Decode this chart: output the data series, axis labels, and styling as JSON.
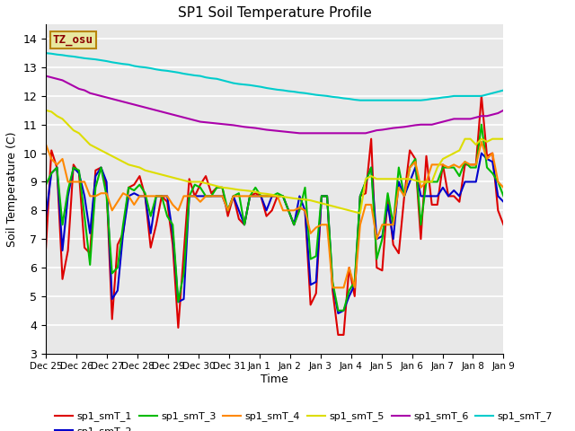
{
  "title": "SP1 Soil Temperature Profile",
  "xlabel": "Time",
  "ylabel": "Soil Temperature (C)",
  "ylim": [
    3.0,
    14.5
  ],
  "background_color": "#e8e8e8",
  "annotation_text": "TZ_osu",
  "annotation_bg": "#e8e8a0",
  "annotation_border": "#b8860b",
  "annotation_text_color": "#8b0000",
  "xtick_labels": [
    "Dec 25",
    "Dec 26",
    "Dec 27",
    "Dec 28",
    "Dec 29",
    "Dec 30",
    "Dec 31",
    "Jan 1",
    "Jan 2",
    "Jan 3",
    "Jan 4",
    "Jan 5",
    "Jan 6",
    "Jan 7",
    "Jan 8",
    "Jan 9"
  ],
  "series_colors": {
    "sp1_smT_1": "#dd0000",
    "sp1_smT_2": "#0000cc",
    "sp1_smT_3": "#00bb00",
    "sp1_smT_4": "#ff8800",
    "sp1_smT_5": "#dddd00",
    "sp1_smT_6": "#aa00aa",
    "sp1_smT_7": "#00cccc"
  },
  "sp1_smT_1": [
    6.7,
    10.1,
    9.5,
    5.6,
    6.6,
    9.6,
    9.3,
    6.7,
    6.5,
    9.4,
    9.5,
    8.8,
    4.2,
    6.8,
    7.2,
    8.8,
    8.9,
    9.2,
    8.5,
    6.7,
    7.5,
    8.5,
    8.3,
    6.8,
    3.9,
    6.5,
    9.1,
    8.5,
    8.9,
    9.2,
    8.6,
    8.8,
    8.8,
    7.8,
    8.5,
    7.7,
    7.5,
    8.5,
    8.6,
    8.5,
    7.8,
    8.0,
    8.5,
    8.5,
    8.0,
    7.5,
    8.1,
    8.0,
    4.7,
    5.1,
    8.5,
    8.5,
    5.2,
    3.65,
    3.65,
    6.0,
    5.0,
    8.5,
    8.6,
    10.5,
    6.0,
    5.9,
    8.5,
    6.8,
    6.5,
    8.5,
    10.1,
    9.8,
    7.0,
    9.9,
    8.2,
    8.2,
    9.6,
    8.5,
    8.5,
    8.3,
    9.6,
    9.6,
    9.6,
    12.0,
    9.9,
    10.0,
    8.0,
    7.5
  ],
  "sp1_smT_2": [
    7.8,
    9.3,
    9.5,
    6.6,
    8.5,
    9.5,
    9.3,
    8.5,
    7.2,
    9.2,
    9.5,
    9.0,
    4.9,
    5.2,
    7.2,
    8.5,
    8.6,
    8.5,
    8.5,
    7.2,
    8.5,
    8.5,
    8.5,
    7.2,
    4.8,
    4.9,
    8.5,
    8.5,
    8.5,
    8.5,
    8.5,
    8.5,
    8.5,
    8.0,
    8.5,
    8.0,
    7.5,
    8.5,
    8.5,
    8.5,
    8.0,
    8.5,
    8.5,
    8.5,
    8.0,
    7.5,
    8.5,
    8.0,
    5.4,
    5.5,
    8.5,
    8.5,
    5.4,
    4.4,
    4.5,
    5.0,
    5.4,
    8.5,
    9.0,
    9.5,
    7.0,
    7.1,
    8.2,
    7.0,
    9.0,
    8.5,
    9.0,
    9.5,
    8.5,
    8.5,
    8.5,
    8.5,
    8.8,
    8.5,
    8.7,
    8.5,
    9.0,
    9.0,
    9.0,
    10.0,
    9.8,
    9.7,
    8.5,
    8.3
  ],
  "sp1_smT_3": [
    8.9,
    9.3,
    9.5,
    7.5,
    8.7,
    9.5,
    9.4,
    7.8,
    6.1,
    8.8,
    9.5,
    8.5,
    5.8,
    6.0,
    7.5,
    8.8,
    8.7,
    8.9,
    8.6,
    7.8,
    8.5,
    8.5,
    7.8,
    7.5,
    4.8,
    5.8,
    8.5,
    8.9,
    8.8,
    8.5,
    8.5,
    8.8,
    8.8,
    8.0,
    8.5,
    8.6,
    7.5,
    8.5,
    8.8,
    8.5,
    8.5,
    8.5,
    8.6,
    8.5,
    8.0,
    7.5,
    8.0,
    8.8,
    6.3,
    6.4,
    8.5,
    8.5,
    5.5,
    4.5,
    4.5,
    5.2,
    5.5,
    8.5,
    9.0,
    9.5,
    6.3,
    7.0,
    8.6,
    7.5,
    9.5,
    8.5,
    9.5,
    9.8,
    7.5,
    9.0,
    9.0,
    9.0,
    9.5,
    9.5,
    9.5,
    9.2,
    9.7,
    9.5,
    9.5,
    11.0,
    9.5,
    9.3,
    9.0,
    8.5
  ],
  "sp1_smT_4": [
    10.3,
    9.8,
    9.6,
    9.8,
    9.0,
    9.0,
    9.0,
    9.0,
    8.5,
    8.5,
    8.6,
    8.6,
    8.0,
    8.3,
    8.6,
    8.5,
    8.2,
    8.5,
    8.5,
    8.5,
    8.5,
    8.5,
    8.5,
    8.2,
    8.0,
    8.5,
    8.5,
    8.5,
    8.3,
    8.5,
    8.5,
    8.5,
    8.5,
    8.0,
    8.5,
    8.5,
    8.5,
    8.5,
    8.5,
    8.5,
    8.5,
    8.5,
    8.5,
    8.0,
    8.0,
    8.0,
    8.1,
    8.0,
    7.2,
    7.4,
    7.5,
    7.5,
    5.3,
    5.3,
    5.3,
    6.0,
    5.3,
    7.5,
    8.2,
    8.2,
    7.0,
    7.5,
    7.5,
    7.5,
    8.8,
    8.5,
    9.5,
    9.7,
    8.8,
    9.0,
    9.6,
    9.6,
    9.6,
    9.5,
    9.6,
    9.5,
    9.7,
    9.6,
    9.6,
    10.4,
    9.8,
    10.0,
    9.0,
    8.8
  ],
  "sp1_smT_5": [
    11.5,
    11.45,
    11.3,
    11.2,
    11.0,
    10.8,
    10.7,
    10.5,
    10.3,
    10.2,
    10.1,
    10.0,
    9.9,
    9.8,
    9.7,
    9.6,
    9.55,
    9.5,
    9.4,
    9.35,
    9.3,
    9.25,
    9.2,
    9.15,
    9.1,
    9.05,
    9.0,
    9.0,
    9.0,
    8.95,
    8.9,
    8.85,
    8.8,
    8.78,
    8.75,
    8.72,
    8.7,
    8.68,
    8.65,
    8.6,
    8.58,
    8.55,
    8.5,
    8.48,
    8.45,
    8.42,
    8.4,
    8.38,
    8.35,
    8.3,
    8.25,
    8.2,
    8.15,
    8.1,
    8.05,
    8.0,
    7.95,
    7.9,
    9.1,
    9.2,
    9.1,
    9.1,
    9.1,
    9.1,
    9.1,
    9.1,
    9.1,
    9.05,
    9.0,
    9.0,
    9.0,
    9.5,
    9.8,
    9.9,
    10.0,
    10.1,
    10.5,
    10.5,
    10.3,
    10.5,
    10.4,
    10.5,
    10.5,
    10.5
  ],
  "sp1_smT_6": [
    12.7,
    12.65,
    12.6,
    12.55,
    12.45,
    12.35,
    12.25,
    12.2,
    12.1,
    12.05,
    12.0,
    11.95,
    11.9,
    11.85,
    11.8,
    11.75,
    11.7,
    11.65,
    11.6,
    11.55,
    11.5,
    11.45,
    11.4,
    11.35,
    11.3,
    11.25,
    11.2,
    11.15,
    11.1,
    11.08,
    11.06,
    11.04,
    11.02,
    11.0,
    10.98,
    10.95,
    10.92,
    10.9,
    10.88,
    10.85,
    10.82,
    10.8,
    10.78,
    10.76,
    10.74,
    10.72,
    10.7,
    10.7,
    10.7,
    10.7,
    10.7,
    10.7,
    10.7,
    10.7,
    10.7,
    10.7,
    10.7,
    10.7,
    10.7,
    10.75,
    10.8,
    10.82,
    10.85,
    10.88,
    10.9,
    10.92,
    10.95,
    10.98,
    11.0,
    11.0,
    11.0,
    11.05,
    11.1,
    11.15,
    11.2,
    11.2,
    11.2,
    11.2,
    11.25,
    11.3,
    11.3,
    11.35,
    11.4,
    11.5
  ],
  "sp1_smT_7": [
    13.5,
    13.48,
    13.45,
    13.43,
    13.4,
    13.38,
    13.35,
    13.32,
    13.3,
    13.28,
    13.25,
    13.22,
    13.18,
    13.15,
    13.12,
    13.1,
    13.05,
    13.02,
    13.0,
    12.97,
    12.93,
    12.9,
    12.88,
    12.85,
    12.82,
    12.78,
    12.75,
    12.72,
    12.7,
    12.65,
    12.62,
    12.6,
    12.55,
    12.5,
    12.45,
    12.42,
    12.4,
    12.38,
    12.35,
    12.32,
    12.28,
    12.25,
    12.22,
    12.2,
    12.17,
    12.15,
    12.12,
    12.1,
    12.07,
    12.04,
    12.02,
    12.0,
    11.97,
    11.95,
    11.92,
    11.9,
    11.87,
    11.85,
    11.85,
    11.85,
    11.85,
    11.85,
    11.85,
    11.85,
    11.85,
    11.85,
    11.85,
    11.85,
    11.85,
    11.87,
    11.9,
    11.92,
    11.95,
    11.97,
    12.0,
    12.0,
    12.0,
    12.0,
    12.0,
    12.0,
    12.05,
    12.1,
    12.15,
    12.2
  ]
}
